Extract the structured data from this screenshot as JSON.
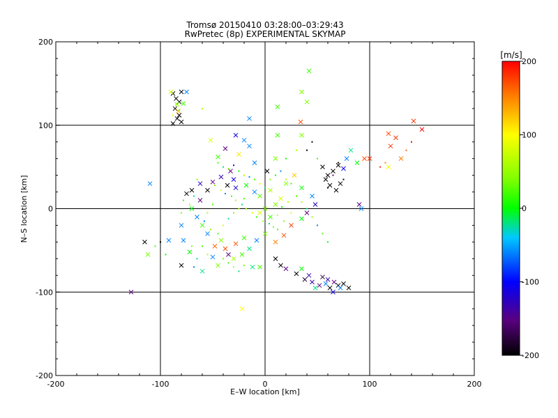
{
  "chart_data": {
    "type": "scatter",
    "title": "Tromsø 20150410 03:28:00–03:29:43",
    "subtitle": "RwPretec (8p) EXPERIMENTAL SKYMAP",
    "xlabel": "E–W location [km]",
    "ylabel": "N–S location [km]",
    "xlim": [
      -200,
      200
    ],
    "ylim": [
      -200,
      200
    ],
    "x_ticks": [
      -200,
      -100,
      0,
      100,
      200
    ],
    "y_ticks": [
      -200,
      -100,
      0,
      100,
      200
    ],
    "grid": true,
    "colorbar": {
      "unit": "[m/s]",
      "range": [
        -200,
        200
      ],
      "ticks": [
        200,
        100,
        0,
        -100,
        -200
      ]
    },
    "points": [
      [
        -88,
        138,
        -200
      ],
      [
        -85,
        132,
        -200
      ],
      [
        -80,
        140,
        -200
      ],
      [
        -82,
        128,
        -200
      ],
      [
        -84,
        125,
        40
      ],
      [
        -86,
        120,
        -200
      ],
      [
        -82,
        112,
        -200
      ],
      [
        -84,
        108,
        -200
      ],
      [
        -80,
        104,
        -200
      ],
      [
        -88,
        102,
        -200
      ],
      [
        -90,
        140,
        80
      ],
      [
        -83,
        117,
        130
      ],
      [
        -78,
        126,
        20
      ],
      [
        -75,
        140,
        -60
      ],
      [
        42,
        165,
        20
      ],
      [
        35,
        140,
        40
      ],
      [
        40,
        128,
        40
      ],
      [
        12,
        122,
        20
      ],
      [
        -15,
        108,
        -60
      ],
      [
        34,
        104,
        170
      ],
      [
        35,
        88,
        40
      ],
      [
        12,
        88,
        20
      ],
      [
        -20,
        82,
        -60
      ],
      [
        -28,
        88,
        -110
      ],
      [
        -52,
        82,
        80
      ],
      [
        -38,
        72,
        -150
      ],
      [
        -25,
        65,
        110
      ],
      [
        -15,
        75,
        -60
      ],
      [
        -45,
        62,
        20
      ],
      [
        -10,
        55,
        -60
      ],
      [
        2,
        45,
        -200
      ],
      [
        10,
        60,
        40
      ],
      [
        -33,
        45,
        -150
      ],
      [
        -30,
        35,
        -110
      ],
      [
        -42,
        38,
        -130
      ],
      [
        -50,
        32,
        -150
      ],
      [
        -55,
        22,
        -200
      ],
      [
        -36,
        28,
        -200
      ],
      [
        -28,
        25,
        -110
      ],
      [
        -18,
        28,
        0
      ],
      [
        -10,
        20,
        -60
      ],
      [
        -5,
        15,
        30
      ],
      [
        5,
        22,
        60
      ],
      [
        15,
        12,
        80
      ],
      [
        20,
        30,
        40
      ],
      [
        28,
        40,
        120
      ],
      [
        35,
        25,
        0
      ],
      [
        45,
        15,
        -60
      ],
      [
        48,
        5,
        -120
      ],
      [
        40,
        -5,
        -150
      ],
      [
        35,
        -12,
        0
      ],
      [
        25,
        -20,
        180
      ],
      [
        18,
        -32,
        170
      ],
      [
        10,
        -40,
        150
      ],
      [
        0,
        -30,
        40
      ],
      [
        -8,
        -38,
        -60
      ],
      [
        -15,
        -48,
        -20
      ],
      [
        -22,
        -55,
        20
      ],
      [
        -30,
        -60,
        60
      ],
      [
        -38,
        -48,
        170
      ],
      [
        -42,
        -38,
        40
      ],
      [
        -48,
        -45,
        160
      ],
      [
        -55,
        -30,
        -60
      ],
      [
        -60,
        -20,
        20
      ],
      [
        -65,
        -10,
        -60
      ],
      [
        -70,
        0,
        0
      ],
      [
        -62,
        10,
        -150
      ],
      [
        -70,
        22,
        -200
      ],
      [
        -62,
        30,
        -120
      ],
      [
        -75,
        18,
        -200
      ],
      [
        -80,
        -20,
        -60
      ],
      [
        -78,
        -38,
        -60
      ],
      [
        -92,
        -38,
        -60
      ],
      [
        -80,
        -68,
        -200
      ],
      [
        -72,
        -52,
        0
      ],
      [
        -60,
        -75,
        -20
      ],
      [
        -50,
        -58,
        -60
      ],
      [
        -45,
        -68,
        40
      ],
      [
        -35,
        -55,
        -150
      ],
      [
        -28,
        -42,
        170
      ],
      [
        -20,
        -35,
        20
      ],
      [
        -12,
        -70,
        -20
      ],
      [
        -5,
        -70,
        20
      ],
      [
        10,
        -60,
        -200
      ],
      [
        15,
        -68,
        -200
      ],
      [
        20,
        -72,
        -150
      ],
      [
        30,
        -78,
        -200
      ],
      [
        38,
        -85,
        -180
      ],
      [
        45,
        -88,
        -130
      ],
      [
        52,
        -92,
        -150
      ],
      [
        58,
        -90,
        -60
      ],
      [
        62,
        -95,
        -200
      ],
      [
        66,
        -88,
        -150
      ],
      [
        70,
        -92,
        -200
      ],
      [
        75,
        -90,
        -200
      ],
      [
        80,
        -95,
        -200
      ],
      [
        65,
        -100,
        -110
      ],
      [
        48,
        -95,
        -20
      ],
      [
        42,
        -80,
        -130
      ],
      [
        35,
        -72,
        0
      ],
      [
        55,
        -82,
        -180
      ],
      [
        60,
        -85,
        -130
      ],
      [
        72,
        -95,
        -60
      ],
      [
        55,
        50,
        -200
      ],
      [
        60,
        40,
        -200
      ],
      [
        65,
        45,
        -200
      ],
      [
        70,
        52,
        -200
      ],
      [
        58,
        35,
        -200
      ],
      [
        62,
        28,
        -200
      ],
      [
        68,
        22,
        -200
      ],
      [
        72,
        30,
        -200
      ],
      [
        75,
        48,
        -110
      ],
      [
        78,
        60,
        -60
      ],
      [
        82,
        70,
        -20
      ],
      [
        88,
        55,
        0
      ],
      [
        95,
        60,
        170
      ],
      [
        100,
        60,
        180
      ],
      [
        90,
        5,
        -150
      ],
      [
        92,
        0,
        -60
      ],
      [
        118,
        90,
        170
      ],
      [
        125,
        85,
        180
      ],
      [
        142,
        105,
        180
      ],
      [
        150,
        95,
        200
      ],
      [
        120,
        75,
        180
      ],
      [
        130,
        60,
        150
      ],
      [
        118,
        50,
        100
      ],
      [
        -110,
        30,
        -60
      ],
      [
        -112,
        -55,
        40
      ],
      [
        -115,
        -40,
        -200
      ],
      [
        -128,
        -100,
        -150
      ],
      [
        -22,
        -120,
        100
      ],
      [
        0,
        0,
        40
      ],
      [
        5,
        -10,
        20
      ],
      [
        -5,
        -5,
        80
      ],
      [
        10,
        5,
        40
      ]
    ],
    "dots": [
      [
        -85,
        125,
        60
      ],
      [
        -82,
        118,
        20
      ],
      [
        -88,
        112,
        80
      ],
      [
        -60,
        120,
        60
      ],
      [
        -45,
        55,
        20
      ],
      [
        -40,
        50,
        -20
      ],
      [
        -35,
        48,
        40
      ],
      [
        -30,
        52,
        -120
      ],
      [
        -25,
        45,
        0
      ],
      [
        -20,
        40,
        60
      ],
      [
        -15,
        38,
        -60
      ],
      [
        -10,
        35,
        20
      ],
      [
        -5,
        30,
        80
      ],
      [
        0,
        25,
        -20
      ],
      [
        5,
        35,
        40
      ],
      [
        10,
        40,
        0
      ],
      [
        15,
        45,
        -60
      ],
      [
        20,
        35,
        60
      ],
      [
        25,
        30,
        20
      ],
      [
        -48,
        28,
        40
      ],
      [
        -42,
        22,
        80
      ],
      [
        -38,
        18,
        -60
      ],
      [
        -32,
        15,
        20
      ],
      [
        -28,
        10,
        60
      ],
      [
        -22,
        5,
        -20
      ],
      [
        -18,
        0,
        40
      ],
      [
        -12,
        -5,
        80
      ],
      [
        -8,
        -10,
        20
      ],
      [
        -2,
        -15,
        60
      ],
      [
        4,
        -18,
        -20
      ],
      [
        8,
        -22,
        40
      ],
      [
        12,
        -8,
        80
      ],
      [
        16,
        2,
        0
      ],
      [
        22,
        8,
        60
      ],
      [
        -50,
        5,
        20
      ],
      [
        -55,
        -5,
        60
      ],
      [
        -58,
        -15,
        -60
      ],
      [
        -52,
        -25,
        40
      ],
      [
        -45,
        -30,
        20
      ],
      [
        -40,
        -20,
        80
      ],
      [
        -35,
        -12,
        -20
      ],
      [
        -30,
        -5,
        40
      ],
      [
        -25,
        0,
        60
      ],
      [
        -20,
        12,
        20
      ],
      [
        -65,
        35,
        40
      ],
      [
        -68,
        15,
        -20
      ],
      [
        -72,
        5,
        60
      ],
      [
        -78,
        10,
        20
      ],
      [
        -80,
        -5,
        40
      ],
      [
        30,
        15,
        20
      ],
      [
        35,
        8,
        60
      ],
      [
        40,
        0,
        -20
      ],
      [
        45,
        -10,
        40
      ],
      [
        50,
        -20,
        -60
      ],
      [
        55,
        -30,
        20
      ],
      [
        60,
        -40,
        0
      ],
      [
        25,
        -5,
        80
      ],
      [
        18,
        -15,
        40
      ],
      [
        12,
        -25,
        20
      ],
      [
        -40,
        -60,
        40
      ],
      [
        -35,
        -65,
        20
      ],
      [
        -30,
        -70,
        60
      ],
      [
        -25,
        -75,
        -20
      ],
      [
        -20,
        -68,
        40
      ],
      [
        -60,
        -45,
        20
      ],
      [
        -55,
        -55,
        60
      ],
      [
        -65,
        -60,
        -20
      ],
      [
        -70,
        -45,
        40
      ],
      [
        70,
        55,
        -200
      ],
      [
        65,
        40,
        -150
      ],
      [
        75,
        35,
        -200
      ],
      [
        60,
        25,
        -180
      ],
      [
        110,
        50,
        180
      ],
      [
        115,
        55,
        150
      ],
      [
        135,
        70,
        160
      ],
      [
        140,
        80,
        200
      ],
      [
        40,
        70,
        -200
      ],
      [
        45,
        80,
        -200
      ],
      [
        50,
        60,
        20
      ],
      [
        30,
        70,
        60
      ],
      [
        20,
        60,
        0
      ],
      [
        -100,
        -40,
        -200
      ],
      [
        -95,
        -55,
        0
      ],
      [
        -68,
        -70,
        -60
      ],
      [
        -105,
        -45,
        20
      ]
    ]
  }
}
